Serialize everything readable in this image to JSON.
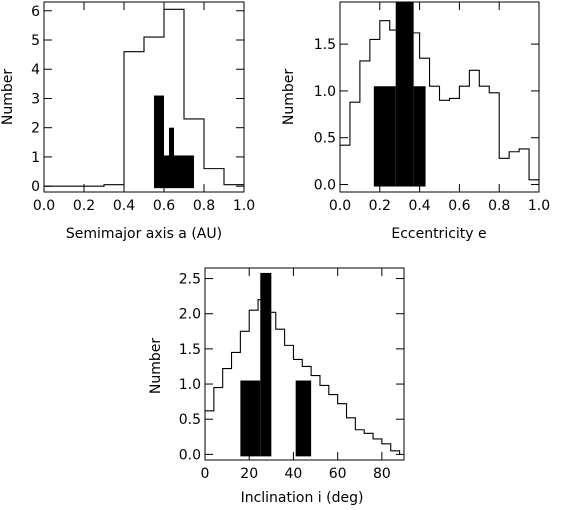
{
  "chart_data": [
    {
      "type": "histogram",
      "xlabel": "Semimajor axis a (AU)",
      "ylabel": "Number",
      "xlim": [
        0.0,
        1.0
      ],
      "ylim": [
        -0.2,
        6.3
      ],
      "xticks": [
        "0.0",
        "0.2",
        "0.4",
        "0.6",
        "0.8",
        "1.0"
      ],
      "yticks": [
        "0",
        "1",
        "2",
        "3",
        "4",
        "5",
        "6"
      ],
      "series": [
        {
          "style": "outline",
          "bin_edges": [
            0.0,
            0.05,
            0.1,
            0.15,
            0.2,
            0.25,
            0.3,
            0.35,
            0.4,
            0.45,
            0.5,
            0.55,
            0.6,
            0.65,
            0.7,
            0.75,
            0.8,
            0.85,
            0.9,
            0.95,
            1.0
          ],
          "counts": [
            0,
            0,
            0,
            0,
            0,
            0,
            0.05,
            0.05,
            4.6,
            4.6,
            5.1,
            5.1,
            6.05,
            6.05,
            2.3,
            2.3,
            0.6,
            0.6,
            0.05,
            0.05
          ]
        },
        {
          "style": "filled",
          "bin_edges": [
            0.55,
            0.6,
            0.625,
            0.65,
            0.7,
            0.75
          ],
          "counts": [
            3.1,
            1.05,
            2.0,
            1.05,
            1.05
          ]
        }
      ]
    },
    {
      "type": "histogram",
      "xlabel": "Eccentricity e",
      "ylabel": "Number",
      "xlim": [
        0.0,
        1.0
      ],
      "ylim": [
        -0.08,
        1.95
      ],
      "xticks": [
        "0.0",
        "0.2",
        "0.4",
        "0.6",
        "0.8",
        "1.0"
      ],
      "yticks": [
        "0.0",
        "0.5",
        "1.0",
        "1.5"
      ],
      "series": [
        {
          "style": "outline",
          "bin_edges": [
            0.0,
            0.05,
            0.1,
            0.15,
            0.2,
            0.25,
            0.3,
            0.35,
            0.4,
            0.45,
            0.5,
            0.55,
            0.6,
            0.65,
            0.7,
            0.75,
            0.8,
            0.85,
            0.9,
            0.95,
            1.0
          ],
          "counts": [
            0.42,
            0.88,
            1.32,
            1.55,
            1.75,
            1.65,
            1.82,
            1.62,
            1.35,
            1.05,
            0.9,
            0.92,
            1.05,
            1.22,
            1.05,
            0.98,
            0.28,
            0.35,
            0.38,
            0.05
          ]
        },
        {
          "style": "filled",
          "bin_edges": [
            0.17,
            0.28,
            0.37,
            0.43
          ],
          "counts": [
            1.05,
            2.1,
            1.05
          ]
        }
      ]
    },
    {
      "type": "histogram",
      "xlabel": "Inclination i (deg)",
      "ylabel": "Number",
      "xlim": [
        0,
        90
      ],
      "ylim": [
        -0.08,
        2.65
      ],
      "xticks": [
        "0",
        "20",
        "40",
        "60",
        "80"
      ],
      "yticks": [
        "0.0",
        "0.5",
        "1.0",
        "1.5",
        "2.0",
        "2.5"
      ],
      "series": [
        {
          "style": "outline",
          "bin_edges": [
            0,
            4,
            8,
            12,
            16,
            20,
            24,
            28,
            32,
            36,
            40,
            44,
            48,
            52,
            56,
            60,
            64,
            68,
            72,
            76,
            80,
            84,
            88
          ],
          "counts": [
            0.62,
            0.95,
            1.22,
            1.45,
            1.75,
            2.05,
            2.2,
            2.02,
            1.78,
            1.55,
            1.35,
            1.25,
            1.12,
            0.98,
            0.85,
            0.72,
            0.52,
            0.35,
            0.3,
            0.22,
            0.15,
            0.05
          ]
        },
        {
          "style": "filled",
          "bin_edges": [
            16,
            25,
            30
          ],
          "counts": [
            1.05,
            2.58
          ]
        },
        {
          "style": "filled",
          "bin_edges": [
            41,
            48
          ],
          "counts": [
            1.05
          ]
        }
      ]
    }
  ]
}
